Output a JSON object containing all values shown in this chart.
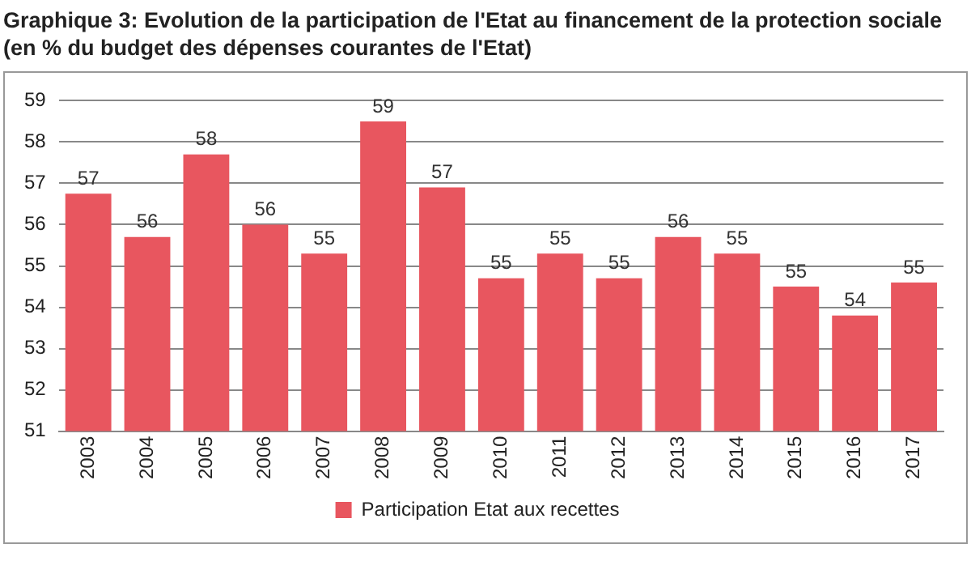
{
  "chart_data": {
    "type": "bar",
    "title": "Graphique 3: Evolution de la participation de l'Etat au financement de la protection sociale",
    "subtitle": "(en % du budget des dépenses courantes de l'Etat)",
    "categories": [
      "2003",
      "2004",
      "2005",
      "2006",
      "2007",
      "2008",
      "2009",
      "2010",
      "2011",
      "2012",
      "2013",
      "2014",
      "2015",
      "2016",
      "2017"
    ],
    "series": [
      {
        "name": "Participation Etat aux recettes",
        "color": "#e8565f",
        "values": [
          56.75,
          55.7,
          57.7,
          56.0,
          55.3,
          58.5,
          56.9,
          54.7,
          55.3,
          54.7,
          55.7,
          55.3,
          54.5,
          53.8,
          54.6
        ],
        "value_labels": [
          "57",
          "56",
          "58",
          "56",
          "55",
          "59",
          "57",
          "55",
          "55",
          "55",
          "56",
          "55",
          "55",
          "54",
          "55"
        ]
      }
    ],
    "ylim": [
      51,
      59
    ],
    "yticks": [
      51,
      52,
      53,
      54,
      55,
      56,
      57,
      58,
      59
    ],
    "grid": "y",
    "legend": "bottom"
  }
}
